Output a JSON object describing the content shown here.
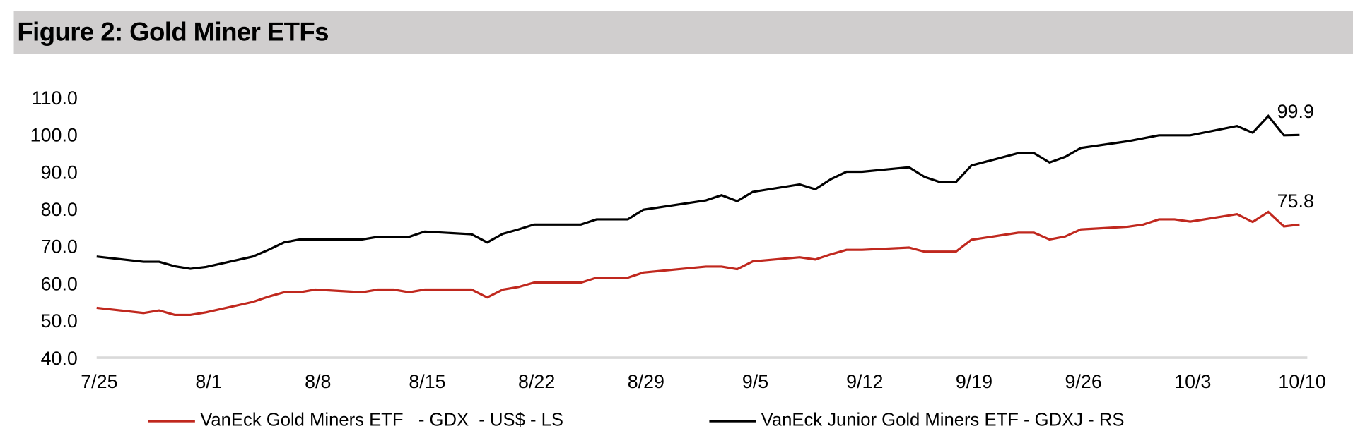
{
  "title": "Figure 2: Gold Miner ETFs",
  "chart_data": {
    "type": "line",
    "title": "Figure 2: Gold Miner ETFs",
    "xlabel": "",
    "ylabel": "",
    "x_unit": "calendar days since 7/25",
    "ylim": [
      40,
      110
    ],
    "xlim": [
      0,
      77
    ],
    "yticks": [
      40,
      50,
      60,
      70,
      80,
      90,
      100,
      110
    ],
    "ytick_labels": [
      "40.0",
      "50.0",
      "60.0",
      "70.0",
      "80.0",
      "90.0",
      "100.0",
      "110.0"
    ],
    "xticks": [
      0,
      7,
      14,
      21,
      28,
      35,
      42,
      49,
      56,
      63,
      70,
      77
    ],
    "xtick_labels": [
      "7/25",
      "8/1",
      "8/8",
      "8/15",
      "8/22",
      "8/29",
      "9/5",
      "9/12",
      "9/19",
      "9/26",
      "10/3",
      "10/10"
    ],
    "grid": false,
    "legend_position": "bottom",
    "series": [
      {
        "name": "VanEck Gold Miners ETF   - GDX  - US$ - LS",
        "color": "#c0281e",
        "end_label": "75.8",
        "points": [
          [
            0,
            53.4
          ],
          [
            3,
            52.0
          ],
          [
            4,
            52.7
          ],
          [
            5,
            51.5
          ],
          [
            6,
            51.5
          ],
          [
            7,
            52.2
          ],
          [
            10,
            55.0
          ],
          [
            11,
            56.4
          ],
          [
            12,
            57.6
          ],
          [
            13,
            57.6
          ],
          [
            14,
            58.3
          ],
          [
            17,
            57.6
          ],
          [
            18,
            58.3
          ],
          [
            19,
            58.3
          ],
          [
            20,
            57.6
          ],
          [
            21,
            58.3
          ],
          [
            24,
            58.3
          ],
          [
            25,
            56.2
          ],
          [
            26,
            58.3
          ],
          [
            27,
            59.0
          ],
          [
            28,
            60.2
          ],
          [
            31,
            60.2
          ],
          [
            32,
            61.5
          ],
          [
            33,
            61.5
          ],
          [
            34,
            61.5
          ],
          [
            35,
            62.9
          ],
          [
            39,
            64.5
          ],
          [
            40,
            64.5
          ],
          [
            41,
            63.8
          ],
          [
            42,
            65.9
          ],
          [
            45,
            67.0
          ],
          [
            46,
            66.4
          ],
          [
            47,
            67.8
          ],
          [
            48,
            69.0
          ],
          [
            49,
            69.0
          ],
          [
            52,
            69.6
          ],
          [
            53,
            68.5
          ],
          [
            54,
            68.5
          ],
          [
            55,
            68.5
          ],
          [
            56,
            71.7
          ],
          [
            59,
            73.6
          ],
          [
            60,
            73.6
          ],
          [
            61,
            71.8
          ],
          [
            62,
            72.6
          ],
          [
            63,
            74.5
          ],
          [
            66,
            75.2
          ],
          [
            67,
            75.8
          ],
          [
            68,
            77.2
          ],
          [
            69,
            77.2
          ],
          [
            70,
            76.6
          ],
          [
            73,
            78.6
          ],
          [
            74,
            76.5
          ],
          [
            75,
            79.2
          ],
          [
            76,
            75.3
          ],
          [
            77,
            75.8
          ]
        ]
      },
      {
        "name": "VanEck Junior Gold Miners ETF - GDXJ - RS",
        "color": "#000000",
        "end_label": "99.9",
        "points": [
          [
            0,
            67.2
          ],
          [
            3,
            65.8
          ],
          [
            4,
            65.8
          ],
          [
            5,
            64.6
          ],
          [
            6,
            63.9
          ],
          [
            7,
            64.4
          ],
          [
            10,
            67.2
          ],
          [
            11,
            69.0
          ],
          [
            12,
            71.0
          ],
          [
            13,
            71.8
          ],
          [
            14,
            71.8
          ],
          [
            17,
            71.8
          ],
          [
            18,
            72.5
          ],
          [
            19,
            72.5
          ],
          [
            20,
            72.5
          ],
          [
            21,
            73.9
          ],
          [
            24,
            73.2
          ],
          [
            25,
            71.0
          ],
          [
            26,
            73.3
          ],
          [
            27,
            74.5
          ],
          [
            28,
            75.8
          ],
          [
            31,
            75.8
          ],
          [
            32,
            77.2
          ],
          [
            33,
            77.2
          ],
          [
            34,
            77.2
          ],
          [
            35,
            79.8
          ],
          [
            39,
            82.3
          ],
          [
            40,
            83.7
          ],
          [
            41,
            82.1
          ],
          [
            42,
            84.6
          ],
          [
            45,
            86.6
          ],
          [
            46,
            85.3
          ],
          [
            47,
            88.0
          ],
          [
            48,
            90.0
          ],
          [
            49,
            90.0
          ],
          [
            52,
            91.2
          ],
          [
            53,
            88.6
          ],
          [
            54,
            87.2
          ],
          [
            55,
            87.2
          ],
          [
            56,
            91.7
          ],
          [
            59,
            95.0
          ],
          [
            60,
            95.0
          ],
          [
            61,
            92.5
          ],
          [
            62,
            94.0
          ],
          [
            63,
            96.4
          ],
          [
            66,
            98.2
          ],
          [
            67,
            99.0
          ],
          [
            68,
            99.8
          ],
          [
            69,
            99.8
          ],
          [
            70,
            99.8
          ],
          [
            73,
            102.3
          ],
          [
            74,
            100.5
          ],
          [
            75,
            105.0
          ],
          [
            76,
            99.8
          ],
          [
            77,
            99.9
          ]
        ]
      }
    ]
  },
  "axis_color": "#d9d9d9",
  "title_bg": "#d0cece"
}
